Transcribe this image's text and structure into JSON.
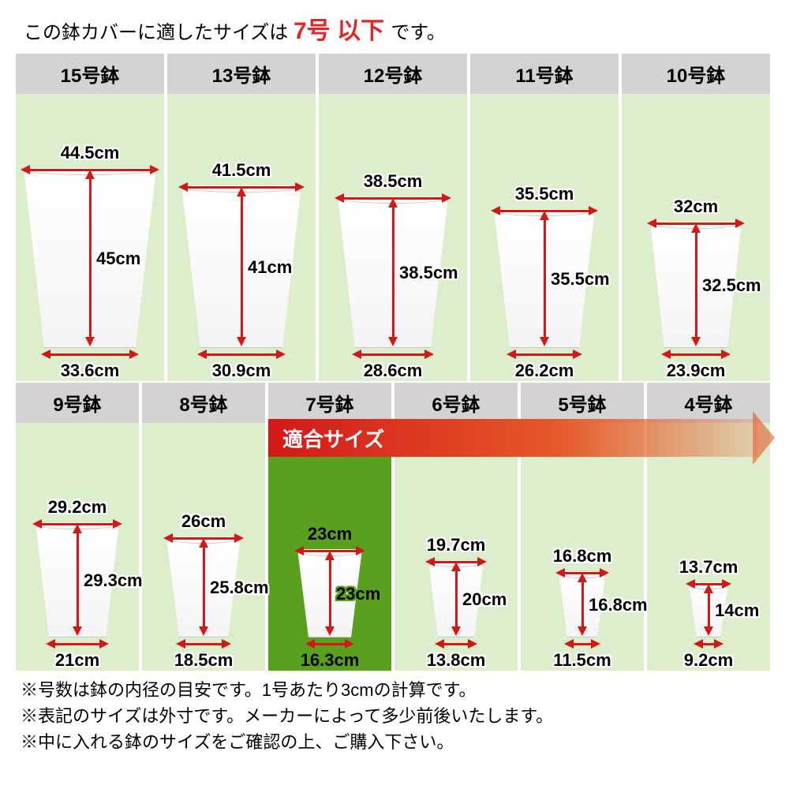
{
  "title_prefix": "この鉢カバーに適したサイズは ",
  "title_em": "7号 以下 ",
  "title_suffix": "です。",
  "fit_label": "適合サイズ",
  "colors": {
    "accent": "#d31818",
    "cell_bg": "#dceecb",
    "highlight_bg": "#58a01e",
    "header_bg": "#d3d3d3"
  },
  "row1": [
    {
      "label": "15号鉢",
      "top": "44.5cm",
      "height": "45cm",
      "bottom": "33.6cm",
      "potW": 168,
      "potH": 228,
      "taper": 26
    },
    {
      "label": "13号鉢",
      "top": "41.5cm",
      "height": "41cm",
      "bottom": "30.9cm",
      "potW": 152,
      "potH": 206,
      "taper": 24
    },
    {
      "label": "12号鉢",
      "top": "38.5cm",
      "height": "38.5cm",
      "bottom": "28.6cm",
      "potW": 140,
      "potH": 192,
      "taper": 22
    },
    {
      "label": "11号鉢",
      "top": "35.5cm",
      "height": "35.5cm",
      "bottom": "26.2cm",
      "potW": 128,
      "potH": 176,
      "taper": 20
    },
    {
      "label": "10号鉢",
      "top": "32cm",
      "height": "32.5cm",
      "bottom": "23.9cm",
      "potW": 116,
      "potH": 160,
      "taper": 18
    }
  ],
  "row2": [
    {
      "label": "9号鉢",
      "top": "29.2cm",
      "height": "29.3cm",
      "bottom": "21cm",
      "potW": 106,
      "potH": 146,
      "taper": 17,
      "hi": false
    },
    {
      "label": "8号鉢",
      "top": "26cm",
      "height": "25.8cm",
      "bottom": "18.5cm",
      "potW": 94,
      "potH": 128,
      "taper": 16,
      "hi": false
    },
    {
      "label": "7号鉢",
      "top": "23cm",
      "height": "23cm",
      "bottom": "16.3cm",
      "potW": 82,
      "potH": 112,
      "taper": 14,
      "hi": true
    },
    {
      "label": "6号鉢",
      "top": "19.7cm",
      "height": "20cm",
      "bottom": "13.8cm",
      "potW": 70,
      "potH": 98,
      "taper": 12,
      "hi": false
    },
    {
      "label": "5号鉢",
      "top": "16.8cm",
      "height": "16.8cm",
      "bottom": "11.5cm",
      "potW": 60,
      "potH": 84,
      "taper": 11,
      "hi": false
    },
    {
      "label": "4号鉢",
      "top": "13.7cm",
      "height": "14cm",
      "bottom": "9.2cm",
      "potW": 50,
      "potH": 70,
      "taper": 10,
      "hi": false
    }
  ],
  "notes": [
    "※号数は鉢の内径の目安です。1号あたり3cmの計算です。",
    "※表記のサイズは外寸です。メーカーによって多少前後いたします。",
    "※中に入れる鉢のサイズをご確認の上、ご購入下さい。"
  ]
}
